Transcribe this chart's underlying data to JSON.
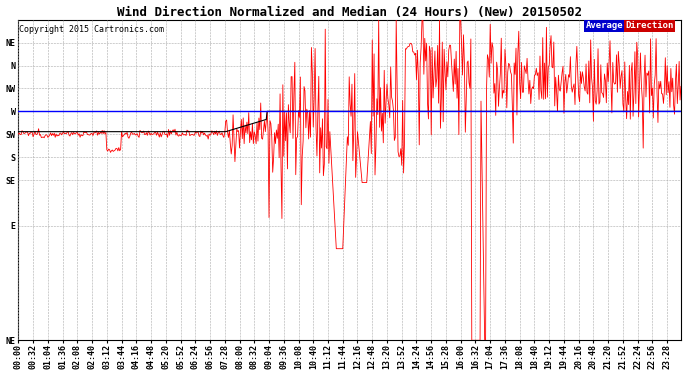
{
  "title": "Wind Direction Normalized and Median (24 Hours) (New) 20150502",
  "copyright": "Copyright 2015 Cartronics.com",
  "legend_avg": "Average",
  "legend_dir": "Direction",
  "ytick_labels": [
    "NE",
    "N",
    "NW",
    "W",
    "SW",
    "S",
    "SE",
    "E",
    "NE"
  ],
  "ytick_positions": [
    337.5,
    315,
    292.5,
    270,
    247.5,
    225,
    202.5,
    157.5,
    45
  ],
  "ymin": 45,
  "ymax": 360,
  "avg_direction_value": 270,
  "background_color": "#ffffff",
  "grid_color": "#aaaaaa",
  "red_line_color": "#ff0000",
  "black_line_color": "#000000",
  "blue_line_color": "#0000ff",
  "title_fontsize": 9,
  "tick_fontsize": 6,
  "copyright_fontsize": 6,
  "xtick_step_minutes": 32
}
